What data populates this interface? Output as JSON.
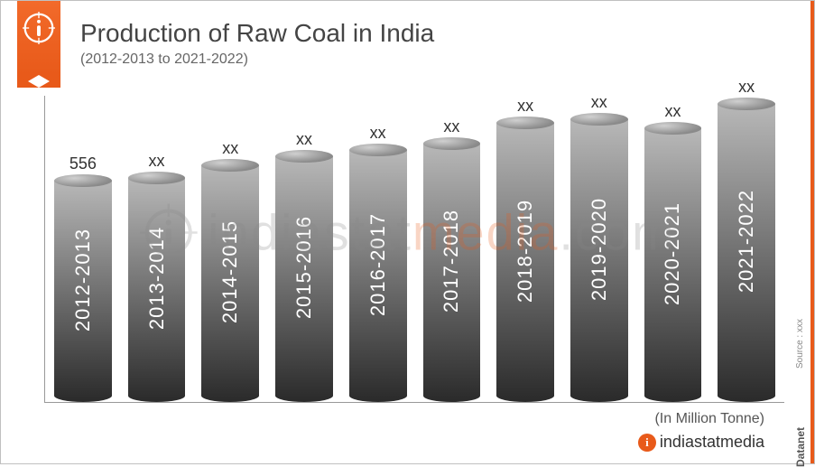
{
  "header": {
    "title": "Production of Raw Coal in India",
    "subtitle": "(2012-2013 to 2021-2022)"
  },
  "chart": {
    "type": "bar",
    "cylinder_3d": true,
    "unit_label": "(In Million Tonne)",
    "background_color": "#ffffff",
    "axis_color": "#999999",
    "value_font_size": 18,
    "value_color": "#333333",
    "label_font_size": 22,
    "label_color": "#ffffff",
    "bar_gradient_top": "#b8b8b8",
    "bar_gradient_bottom": "#2a2a2a",
    "bar_top_ellipse": "#8a8a8a",
    "y_max": 800,
    "bars": [
      {
        "label": "2012-2013",
        "value_text": "556",
        "height_pct": 72
      },
      {
        "label": "2013-2014",
        "value_text": "xx",
        "height_pct": 73
      },
      {
        "label": "2014-2015",
        "value_text": "xx",
        "height_pct": 77
      },
      {
        "label": "2015-2016",
        "value_text": "xx",
        "height_pct": 80
      },
      {
        "label": "2016-2017",
        "value_text": "xx",
        "height_pct": 82
      },
      {
        "label": "2017-2018",
        "value_text": "xx",
        "height_pct": 84
      },
      {
        "label": "2018-2019",
        "value_text": "xx",
        "height_pct": 91
      },
      {
        "label": "2019-2020",
        "value_text": "xx",
        "height_pct": 92
      },
      {
        "label": "2020-2021",
        "value_text": "xx",
        "height_pct": 89
      },
      {
        "label": "2021-2022",
        "value_text": "xx",
        "height_pct": 97
      }
    ]
  },
  "branding": {
    "ribbon_color": "#e85a1a",
    "footer_text": "indiastatmedia",
    "side_source": "Source : xxx",
    "side_brand": "Datanet"
  },
  "watermark": {
    "text_gray": "indiastat",
    "text_orange": "media",
    "suffix": ".com"
  }
}
